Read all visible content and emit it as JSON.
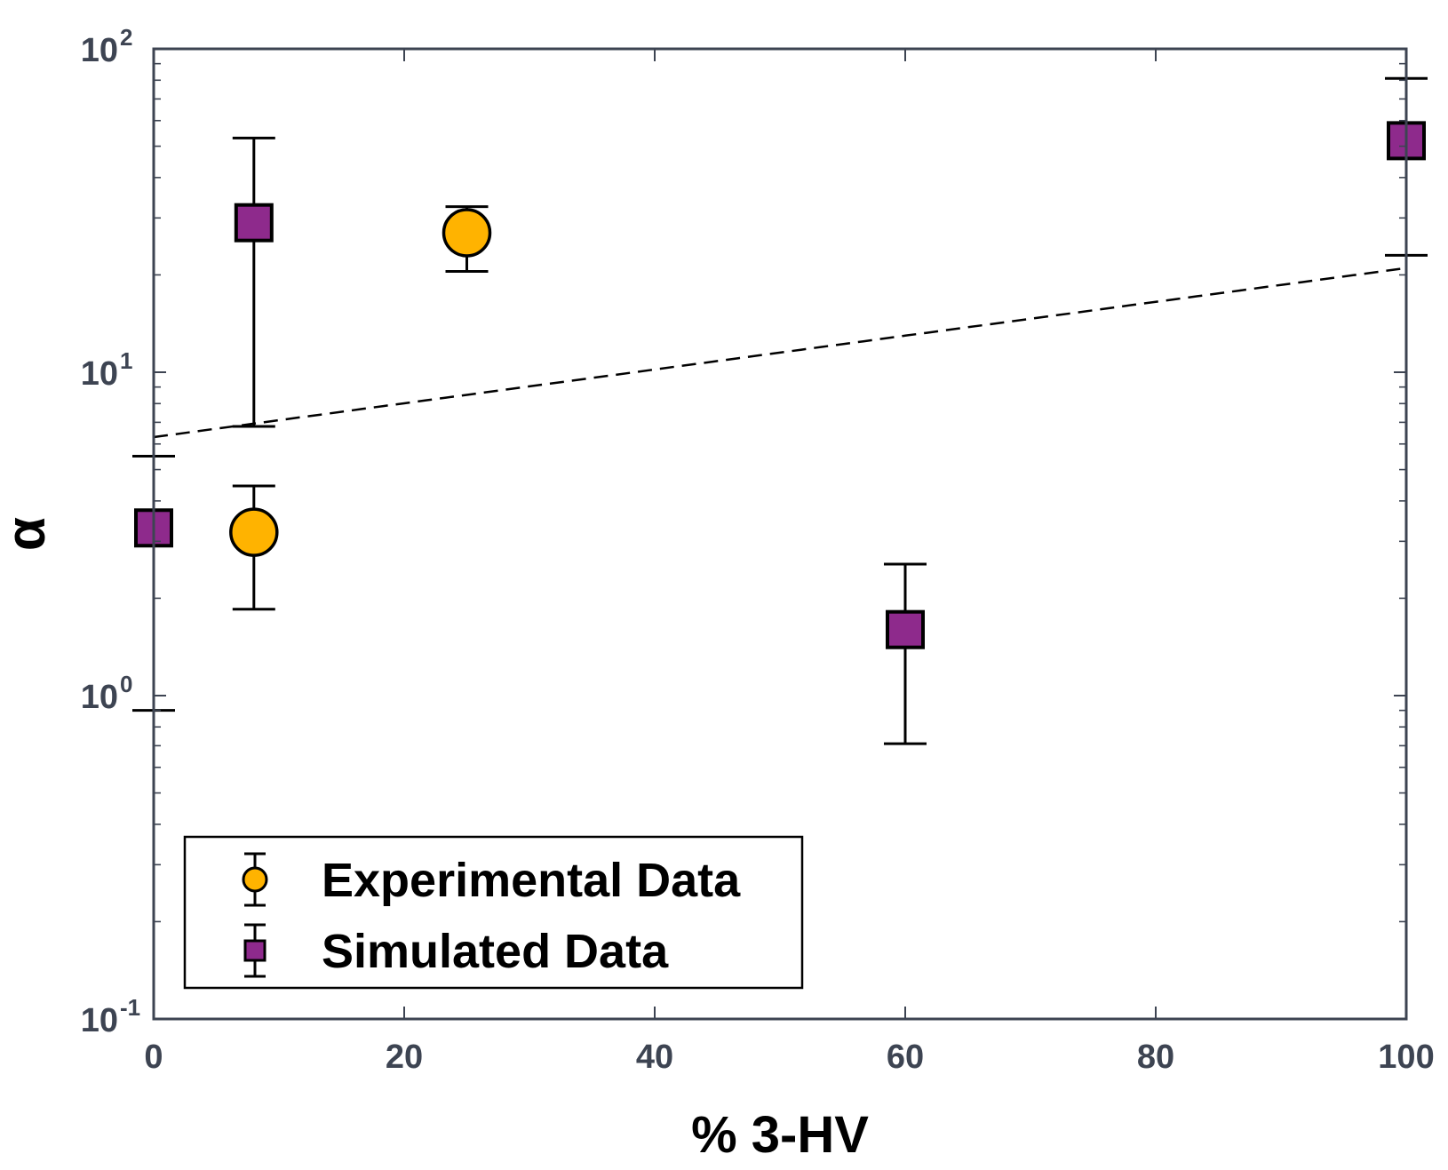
{
  "chart_data": {
    "type": "scatter",
    "title": "",
    "xlabel": "% 3-HV",
    "ylabel": "α",
    "xlim": [
      0,
      100
    ],
    "ylim": [
      0.1,
      100
    ],
    "yscale": "log",
    "x_ticks": [
      0,
      20,
      40,
      60,
      80,
      100
    ],
    "x_tick_labels": [
      "0",
      "20",
      "40",
      "60",
      "80",
      "100"
    ],
    "y_ticks": [
      {
        "value": 0.1,
        "base": "10",
        "exp": "-1"
      },
      {
        "value": 1,
        "base": "10",
        "exp": "0"
      },
      {
        "value": 10,
        "base": "10",
        "exp": "1"
      },
      {
        "value": 100,
        "base": "10",
        "exp": "2"
      }
    ],
    "grid": false,
    "legend_position": "bottom-left",
    "series": [
      {
        "name": "Experimental Data",
        "marker": "circle",
        "color": "#FFB300",
        "points": [
          {
            "x": 8,
            "y": 3.2,
            "lower": 1.85,
            "upper": 4.45
          },
          {
            "x": 25,
            "y": 27,
            "lower": 20.5,
            "upper": 32.5
          }
        ]
      },
      {
        "name": "Simulated Data",
        "marker": "square",
        "color": "#8E2A8C",
        "points": [
          {
            "x": 0,
            "y": 3.3,
            "lower": 0.9,
            "upper": 5.5
          },
          {
            "x": 8,
            "y": 29,
            "lower": 6.8,
            "upper": 53
          },
          {
            "x": 60,
            "y": 1.6,
            "lower": 0.71,
            "upper": 2.55
          },
          {
            "x": 100,
            "y": 52,
            "lower": 23,
            "upper": 81
          }
        ]
      }
    ],
    "fit_line": {
      "style": "dashed",
      "color": "#000000",
      "x": [
        0,
        100
      ],
      "y": [
        6.3,
        21
      ]
    }
  }
}
